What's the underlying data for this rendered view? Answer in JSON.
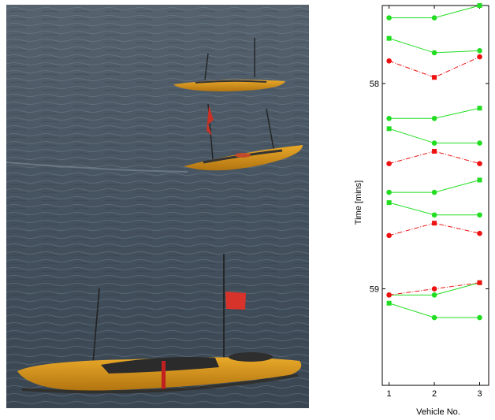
{
  "photo": {
    "subject": "three yellow kayaks with masts and red flags on rippled water",
    "colors": {
      "water": "#4a5866",
      "kayak": "#d9961c",
      "flag": "#d8332a"
    }
  },
  "chart_data": {
    "type": "line",
    "xlabel": "Vehicle No.",
    "ylabel": "Time [mins]",
    "x_ticks": [
      "1",
      "2",
      "3"
    ],
    "y_ticks": [
      "58",
      "59"
    ],
    "xlim": [
      0.85,
      3.2
    ],
    "ylim": [
      57.62,
      59.47
    ],
    "y_inverted": true,
    "grid": false,
    "colors": {
      "comm": "#22dd22",
      "fail": "#ee1111"
    },
    "legend": "none",
    "markers": {
      "sender": "square",
      "receiver": "circle"
    },
    "series": [
      {
        "kind": "comm",
        "values": [
          57.68,
          57.68,
          57.62
        ],
        "sender": 3
      },
      {
        "kind": "comm",
        "values": [
          57.78,
          57.85,
          57.84
        ],
        "sender": 1
      },
      {
        "kind": "fail",
        "values": [
          57.89,
          57.97,
          57.87
        ],
        "sender": 2
      },
      {
        "kind": "comm",
        "values": [
          58.17,
          58.17,
          58.12
        ],
        "sender": 3
      },
      {
        "kind": "comm",
        "values": [
          58.22,
          58.29,
          58.29
        ],
        "sender": 1
      },
      {
        "kind": "fail",
        "values": [
          58.39,
          58.33,
          58.39
        ],
        "sender": 2
      },
      {
        "kind": "comm",
        "values": [
          58.53,
          58.53,
          58.47
        ],
        "sender": 3
      },
      {
        "kind": "comm",
        "values": [
          58.58,
          58.64,
          58.64
        ],
        "sender": 1
      },
      {
        "kind": "fail",
        "values": [
          58.74,
          58.68,
          58.73
        ],
        "sender": 2
      },
      {
        "kind": "comm",
        "values": [
          59.03,
          59.03,
          58.97
        ],
        "sender": 3
      },
      {
        "kind": "fail",
        "values": [
          59.03,
          59.0,
          58.97
        ],
        "sender": 3
      },
      {
        "kind": "comm",
        "values": [
          59.07,
          59.14,
          59.14
        ],
        "sender": 1
      }
    ]
  }
}
